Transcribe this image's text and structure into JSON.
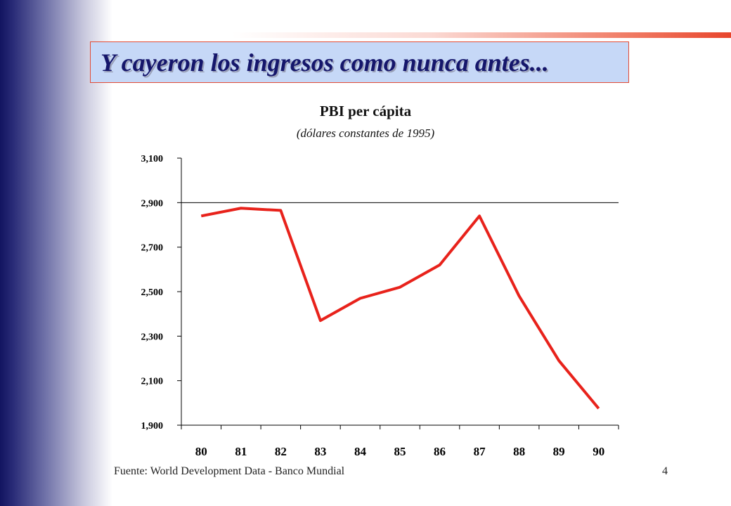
{
  "slide": {
    "title": "Y cayeron los ingresos como nunca antes...",
    "source": "Fuente: World Development Data - Banco Mundial",
    "page_number": "4"
  },
  "colors": {
    "title_bg": "#c6d8f7",
    "title_border": "#e14b36",
    "title_text": "#15166b",
    "line": "#e8221b"
  },
  "chart_data": {
    "type": "line",
    "title": "PBI per cápita",
    "subtitle": "(dólares constantes de 1995)",
    "xlabel": "",
    "ylabel": "",
    "categories": [
      "80",
      "81",
      "82",
      "83",
      "84",
      "85",
      "86",
      "87",
      "88",
      "89",
      "90"
    ],
    "series": [
      {
        "values": [
          2840,
          2875,
          2865,
          2370,
          2470,
          2520,
          2620,
          2840,
          2480,
          2190,
          1975
        ]
      }
    ],
    "ylim": [
      1900,
      3100
    ],
    "yticks": [
      "1,900",
      "2,100",
      "2,300",
      "2,500",
      "2,700",
      "2,900",
      "3,100"
    ],
    "ytick_values": [
      1900,
      2100,
      2300,
      2500,
      2700,
      2900,
      3100
    ],
    "reference_line": 2900,
    "grid": false,
    "legend": "none"
  }
}
